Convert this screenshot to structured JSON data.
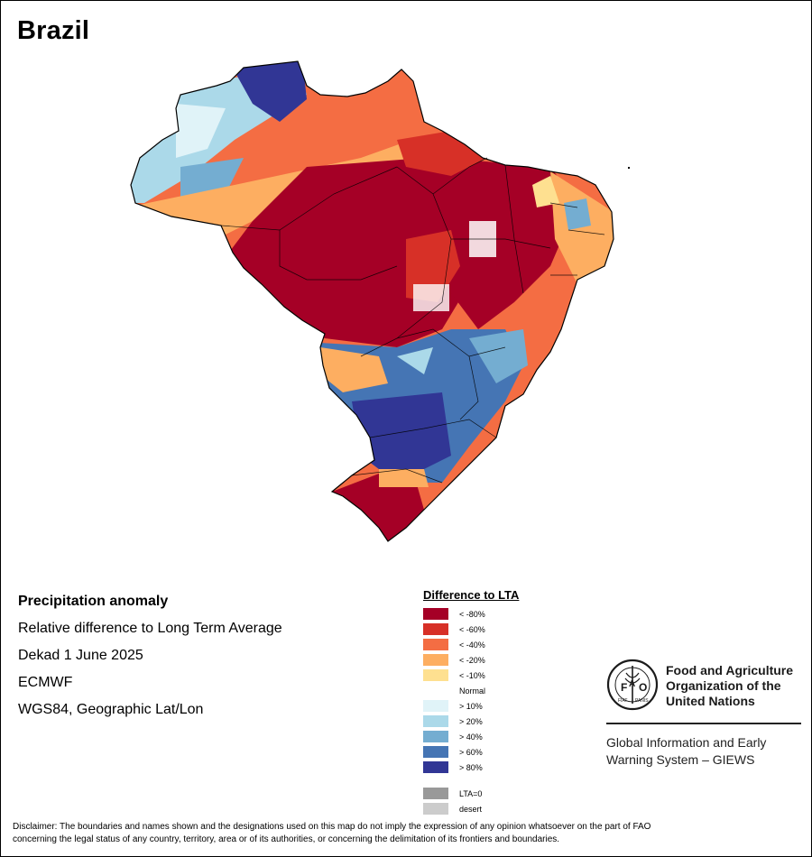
{
  "title": "Brazil",
  "info": {
    "heading": "Precipitation anomaly",
    "line1": "Relative difference to Long Term Average",
    "line2": "Dekad 1 June 2025",
    "line3": "ECMWF",
    "line4": "WGS84, Geographic Lat/Lon"
  },
  "legend": {
    "title": "Difference to LTA",
    "items": [
      {
        "label": "< -80%",
        "color": "#a50026"
      },
      {
        "label": "< -60%",
        "color": "#d73027"
      },
      {
        "label": "< -40%",
        "color": "#f46d43"
      },
      {
        "label": "< -20%",
        "color": "#fdae61"
      },
      {
        "label": "< -10%",
        "color": "#fee090"
      },
      {
        "label": "Normal",
        "color": "#ffffff"
      },
      {
        "label": "> 10%",
        "color": "#e0f3f8"
      },
      {
        "label": "> 20%",
        "color": "#abd9e9"
      },
      {
        "label": "> 40%",
        "color": "#74add1"
      },
      {
        "label": "> 60%",
        "color": "#4575b4"
      },
      {
        "label": "> 80%",
        "color": "#313695"
      }
    ],
    "extra": [
      {
        "label": "LTA=0",
        "color": "#999999"
      },
      {
        "label": "desert",
        "color": "#cccccc"
      }
    ]
  },
  "fao": {
    "name_line1": "Food and Agriculture",
    "name_line2": "Organization of the",
    "name_line3": "United Nations",
    "logo_text": "FAO",
    "logo_ring_text": "FIAT PANIS",
    "giews_line1": "Global Information and Early",
    "giews_line2": "Warning System – GIEWS"
  },
  "disclaimer": {
    "line1": "Disclaimer: The boundaries and names shown and the designations used on this map do not imply the expression of any opinion whatsoever on the part of FAO",
    "line2": "concerning the legal status of any country, territory, area or of its authorities, or concerning the delimitation of its frontiers and boundaries."
  }
}
